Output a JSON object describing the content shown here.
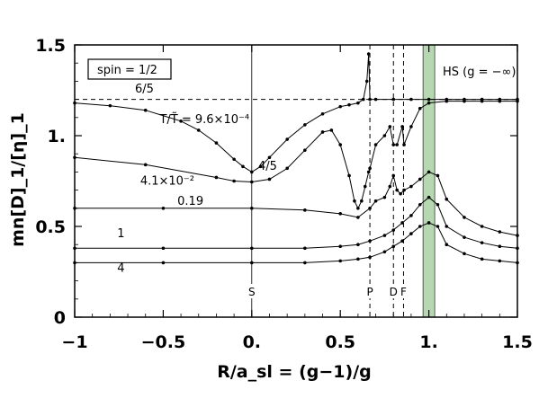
{
  "chart_data": {
    "type": "line",
    "xlabel": "R/a_sl = (g−1)/g",
    "ylabel": "mn[D]_1/[η]_1",
    "xlim": [
      -1,
      1.5
    ],
    "ylim": [
      0,
      1.5
    ],
    "x_ticks": [
      {
        "v": -1,
        "label": "−1"
      },
      {
        "v": -0.5,
        "label": "−0.5"
      },
      {
        "v": 0,
        "label": "0."
      },
      {
        "v": 0.5,
        "label": "0.5"
      },
      {
        "v": 1,
        "label": "1."
      },
      {
        "v": 1.5,
        "label": "1.5"
      }
    ],
    "y_ticks": [
      {
        "v": 0,
        "label": "0"
      },
      {
        "v": 0.5,
        "label": "0.5"
      },
      {
        "v": 1,
        "label": "1."
      },
      {
        "v": 1.5,
        "label": "1.5"
      }
    ],
    "legend_box": "spin = 1/2",
    "reference_line": {
      "y": 1.2,
      "label": "6/5"
    },
    "vertical_markers": [
      {
        "x": 0,
        "label": "S",
        "style": "solid"
      },
      {
        "x": 0.667,
        "label": "P",
        "style": "dashed"
      },
      {
        "x": 0.8,
        "label": "D",
        "style": "dashed"
      },
      {
        "x": 0.857,
        "label": "F",
        "style": "dashed"
      }
    ],
    "band": {
      "x": [
        0.967,
        1.033
      ],
      "color": "#b7d7b2"
    },
    "band_label": "HS (g = −∞)",
    "point_label": "4/5",
    "series": [
      {
        "name": "T/T̃ = 9.6×10⁻⁴",
        "x": [
          -1,
          -0.8,
          -0.6,
          -0.4,
          -0.3,
          -0.2,
          -0.1,
          -0.05,
          0,
          0.05,
          0.1,
          0.2,
          0.3,
          0.4,
          0.5,
          0.55,
          0.6,
          0.63,
          0.65,
          0.66,
          0.667,
          0.7,
          0.8,
          0.9,
          1,
          1.1,
          1.2,
          1.3,
          1.4,
          1.5
        ],
        "y": [
          1.18,
          1.165,
          1.14,
          1.08,
          1.03,
          0.96,
          0.87,
          0.83,
          0.8,
          0.83,
          0.88,
          0.98,
          1.06,
          1.12,
          1.16,
          1.17,
          1.18,
          1.2,
          1.3,
          1.45,
          1.2,
          1.2,
          1.2,
          1.2,
          1.2,
          1.2,
          1.2,
          1.2,
          1.2,
          1.2
        ]
      },
      {
        "name": "4.1×10⁻²",
        "x": [
          -1,
          -0.6,
          -0.2,
          -0.1,
          0,
          0.1,
          0.2,
          0.3,
          0.4,
          0.45,
          0.5,
          0.55,
          0.58,
          0.6,
          0.62,
          0.64,
          0.66,
          0.667,
          0.7,
          0.75,
          0.78,
          0.8,
          0.82,
          0.85,
          0.86,
          0.9,
          0.95,
          1,
          1.1,
          1.2,
          1.3,
          1.4,
          1.5
        ],
        "y": [
          0.88,
          0.84,
          0.77,
          0.75,
          0.745,
          0.76,
          0.82,
          0.92,
          1.02,
          1.03,
          0.95,
          0.78,
          0.64,
          0.6,
          0.64,
          0.72,
          0.8,
          0.82,
          0.95,
          1.0,
          1.05,
          0.95,
          0.95,
          1.05,
          0.95,
          1.05,
          1.15,
          1.18,
          1.19,
          1.19,
          1.19,
          1.19,
          1.19
        ]
      },
      {
        "name": "0.19",
        "x": [
          -1,
          -0.5,
          0,
          0.3,
          0.5,
          0.6,
          0.667,
          0.7,
          0.75,
          0.78,
          0.8,
          0.82,
          0.84,
          0.86,
          0.9,
          0.95,
          1,
          1.05,
          1.1,
          1.2,
          1.3,
          1.4,
          1.5
        ],
        "y": [
          0.6,
          0.6,
          0.6,
          0.59,
          0.57,
          0.55,
          0.6,
          0.64,
          0.66,
          0.72,
          0.78,
          0.7,
          0.68,
          0.7,
          0.72,
          0.76,
          0.8,
          0.78,
          0.65,
          0.55,
          0.5,
          0.47,
          0.45
        ]
      },
      {
        "name": "1",
        "x": [
          -1,
          -0.5,
          0,
          0.3,
          0.5,
          0.6,
          0.667,
          0.75,
          0.8,
          0.85,
          0.9,
          0.95,
          1,
          1.05,
          1.1,
          1.2,
          1.3,
          1.4,
          1.5
        ],
        "y": [
          0.38,
          0.38,
          0.38,
          0.38,
          0.39,
          0.4,
          0.42,
          0.45,
          0.48,
          0.52,
          0.56,
          0.62,
          0.66,
          0.62,
          0.5,
          0.44,
          0.41,
          0.39,
          0.38
        ]
      },
      {
        "name": "4",
        "x": [
          -1,
          -0.5,
          0,
          0.3,
          0.5,
          0.6,
          0.667,
          0.75,
          0.8,
          0.85,
          0.9,
          0.95,
          1,
          1.05,
          1.1,
          1.2,
          1.3,
          1.4,
          1.5
        ],
        "y": [
          0.3,
          0.3,
          0.3,
          0.3,
          0.31,
          0.32,
          0.33,
          0.36,
          0.39,
          0.42,
          0.46,
          0.5,
          0.52,
          0.5,
          0.4,
          0.35,
          0.32,
          0.31,
          0.3
        ]
      }
    ],
    "series_labels": [
      {
        "text": "T/T̃ = 9.6×10⁻⁴",
        "x": -0.52,
        "y": 1.07
      },
      {
        "text": "4.1×10⁻²",
        "x": -0.63,
        "y": 0.73
      },
      {
        "text": "0.19",
        "x": -0.42,
        "y": 0.62
      },
      {
        "text": "1",
        "x": -0.76,
        "y": 0.44
      },
      {
        "text": "4",
        "x": -0.76,
        "y": 0.25
      }
    ]
  }
}
